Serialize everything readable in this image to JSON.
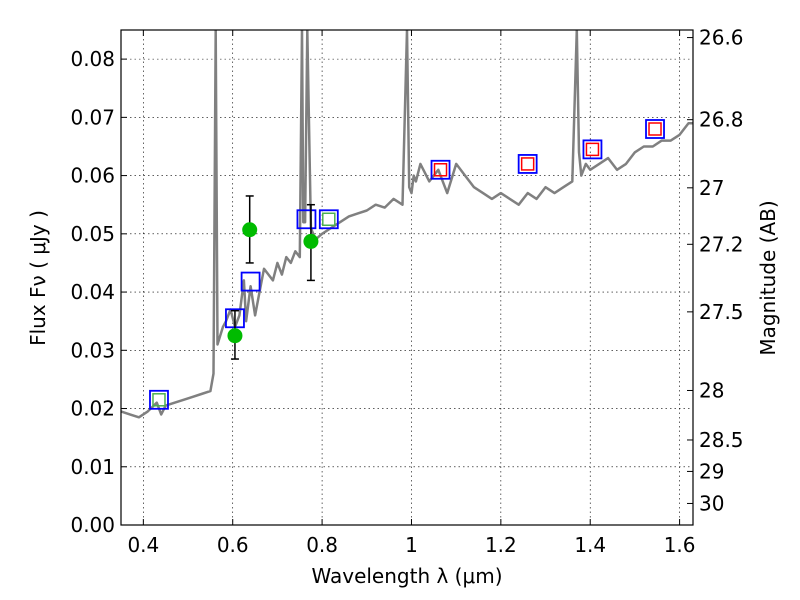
{
  "chart_data": {
    "type": "scatter",
    "xlabel": "Wavelength  λ (μm)",
    "ylabel": "Flux  Fν  ( μJy )",
    "ylabel_right": "Magnitude (AB)",
    "xlim": [
      0.35,
      1.63
    ],
    "ylim": [
      0.0,
      0.085
    ],
    "grid": true,
    "x_ticks": [
      0.4,
      0.6,
      0.8,
      1.0,
      1.2,
      1.4,
      1.6
    ],
    "x_tick_labels": [
      "0.4",
      "0.6",
      "0.8",
      "1",
      "1.2",
      "1.4",
      "1.6"
    ],
    "y_ticks": [
      0.0,
      0.01,
      0.02,
      0.03,
      0.04,
      0.05,
      0.06,
      0.07,
      0.08
    ],
    "y_tick_labels": [
      "0.00",
      "0.01",
      "0.02",
      "0.03",
      "0.04",
      "0.05",
      "0.06",
      "0.07",
      "0.08"
    ],
    "right_ticks": [
      {
        "label": "26.6",
        "flux": 0.0837
      },
      {
        "label": "26.8",
        "flux": 0.0696
      },
      {
        "label": "27",
        "flux": 0.0579
      },
      {
        "label": "27.2",
        "flux": 0.0482
      },
      {
        "label": "27.5",
        "flux": 0.0366
      },
      {
        "label": "28",
        "flux": 0.0231
      },
      {
        "label": "28.5",
        "flux": 0.0146
      },
      {
        "label": "29",
        "flux": 0.0092
      },
      {
        "label": "30",
        "flux": 0.0037
      }
    ],
    "colors": {
      "model": "#808080",
      "blue_box": "#0000ff",
      "green_box": "#4caf50",
      "red_box": "#ff0000",
      "green_point": "#00bb00",
      "errorbar": "#000000"
    },
    "model_spectrum": {
      "x": [
        0.35,
        0.37,
        0.39,
        0.41,
        0.43,
        0.44,
        0.45,
        0.47,
        0.49,
        0.51,
        0.53,
        0.55,
        0.557,
        0.562,
        0.566,
        0.57,
        0.578,
        0.585,
        0.595,
        0.605,
        0.615,
        0.625,
        0.63,
        0.64,
        0.65,
        0.66,
        0.67,
        0.68,
        0.69,
        0.7,
        0.71,
        0.72,
        0.73,
        0.74,
        0.75,
        0.755,
        0.758,
        0.762,
        0.767,
        0.775,
        0.785,
        0.8,
        0.82,
        0.84,
        0.86,
        0.88,
        0.9,
        0.92,
        0.94,
        0.96,
        0.98,
        0.99,
        0.995,
        1.0,
        1.005,
        1.01,
        1.02,
        1.04,
        1.06,
        1.08,
        1.1,
        1.12,
        1.14,
        1.16,
        1.18,
        1.2,
        1.22,
        1.24,
        1.26,
        1.28,
        1.3,
        1.32,
        1.34,
        1.36,
        1.37,
        1.375,
        1.38,
        1.39,
        1.4,
        1.42,
        1.44,
        1.46,
        1.48,
        1.5,
        1.52,
        1.54,
        1.56,
        1.58,
        1.6,
        1.62,
        1.63
      ],
      "y": [
        0.0195,
        0.019,
        0.0185,
        0.0195,
        0.021,
        0.019,
        0.0205,
        0.021,
        0.0215,
        0.022,
        0.0225,
        0.023,
        0.026,
        0.085,
        0.031,
        0.032,
        0.034,
        0.035,
        0.037,
        0.034,
        0.036,
        0.042,
        0.035,
        0.041,
        0.036,
        0.04,
        0.044,
        0.043,
        0.042,
        0.045,
        0.043,
        0.046,
        0.045,
        0.047,
        0.046,
        0.085,
        0.052,
        0.052,
        0.085,
        0.051,
        0.049,
        0.05,
        0.051,
        0.052,
        0.053,
        0.0535,
        0.054,
        0.055,
        0.0545,
        0.056,
        0.055,
        0.085,
        0.058,
        0.057,
        0.06,
        0.059,
        0.062,
        0.059,
        0.061,
        0.057,
        0.062,
        0.06,
        0.058,
        0.057,
        0.056,
        0.057,
        0.056,
        0.055,
        0.057,
        0.056,
        0.058,
        0.057,
        0.058,
        0.059,
        0.085,
        0.064,
        0.06,
        0.062,
        0.061,
        0.062,
        0.063,
        0.061,
        0.062,
        0.064,
        0.065,
        0.065,
        0.066,
        0.066,
        0.067,
        0.069,
        0.069
      ]
    },
    "blue_boxes": [
      {
        "x": 0.435,
        "y": 0.0215,
        "fill": "green"
      },
      {
        "x": 0.605,
        "y": 0.0355,
        "fill": "none"
      },
      {
        "x": 0.64,
        "y": 0.0418,
        "fill": "none"
      },
      {
        "x": 0.765,
        "y": 0.0525,
        "fill": "none"
      },
      {
        "x": 0.815,
        "y": 0.0525,
        "fill": "green"
      },
      {
        "x": 1.065,
        "y": 0.061,
        "fill": "red"
      },
      {
        "x": 1.26,
        "y": 0.062,
        "fill": "red"
      },
      {
        "x": 1.405,
        "y": 0.0645,
        "fill": "red"
      },
      {
        "x": 1.545,
        "y": 0.068,
        "fill": "red"
      }
    ],
    "observed_points": [
      {
        "x": 0.605,
        "y": 0.0325,
        "yerr_low": 0.0285,
        "yerr_high": 0.0368
      },
      {
        "x": 0.638,
        "y": 0.0507,
        "yerr_low": 0.045,
        "yerr_high": 0.0565
      },
      {
        "x": 0.775,
        "y": 0.0487,
        "yerr_low": 0.042,
        "yerr_high": 0.055
      }
    ]
  }
}
